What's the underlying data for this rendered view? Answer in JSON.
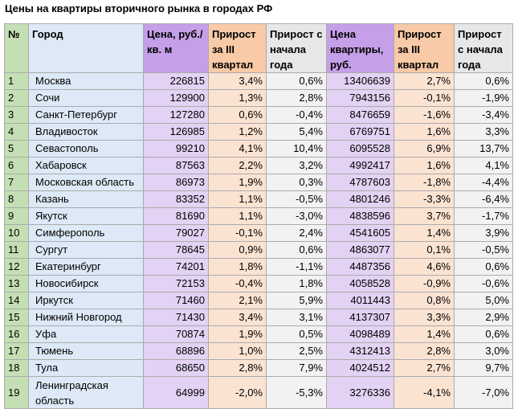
{
  "title": "Цены на квартиры вторичного рынка в городах РФ",
  "headers": {
    "num": "№",
    "city": "Город",
    "price_sqm": "Цена, руб./кв. м",
    "growth_q3_sqm": "Прирост за III квартал",
    "growth_ytd_sqm": "Прирост с начала года",
    "price_flat": "Цена квартиры, руб.",
    "growth_q3_flat": "Прирост за III квартал",
    "growth_ytd_flat": "Прирост с начала года"
  },
  "rows": [
    {
      "num": "1",
      "city": "Москва",
      "price_sqm": "226815",
      "growth_q3_sqm": "3,4%",
      "growth_ytd_sqm": "0,6%",
      "price_flat": "13406639",
      "growth_q3_flat": "2,7%",
      "growth_ytd_flat": "0,6%"
    },
    {
      "num": "2",
      "city": "Сочи",
      "price_sqm": "129900",
      "growth_q3_sqm": "1,3%",
      "growth_ytd_sqm": "2,8%",
      "price_flat": "7943156",
      "growth_q3_flat": "-0,1%",
      "growth_ytd_flat": "-1,9%"
    },
    {
      "num": "3",
      "city": "Санкт-Петербург",
      "price_sqm": "127280",
      "growth_q3_sqm": "0,6%",
      "growth_ytd_sqm": "-0,4%",
      "price_flat": "8476659",
      "growth_q3_flat": "-1,6%",
      "growth_ytd_flat": "-3,4%"
    },
    {
      "num": "4",
      "city": "Владивосток",
      "price_sqm": "126985",
      "growth_q3_sqm": "1,2%",
      "growth_ytd_sqm": "5,4%",
      "price_flat": "6769751",
      "growth_q3_flat": "1,6%",
      "growth_ytd_flat": "3,3%"
    },
    {
      "num": "5",
      "city": "Севастополь",
      "price_sqm": "99210",
      "growth_q3_sqm": "4,1%",
      "growth_ytd_sqm": "10,4%",
      "price_flat": "6095528",
      "growth_q3_flat": "6,9%",
      "growth_ytd_flat": "13,7%"
    },
    {
      "num": "6",
      "city": "Хабаровск",
      "price_sqm": "87563",
      "growth_q3_sqm": "2,2%",
      "growth_ytd_sqm": "3,2%",
      "price_flat": "4992417",
      "growth_q3_flat": "1,6%",
      "growth_ytd_flat": "4,1%"
    },
    {
      "num": "7",
      "city": "Московская область",
      "price_sqm": "86973",
      "growth_q3_sqm": "1,9%",
      "growth_ytd_sqm": "0,3%",
      "price_flat": "4787603",
      "growth_q3_flat": "-1,8%",
      "growth_ytd_flat": "-4,4%"
    },
    {
      "num": "8",
      "city": "Казань",
      "price_sqm": "83352",
      "growth_q3_sqm": "1,1%",
      "growth_ytd_sqm": "-0,5%",
      "price_flat": "4801246",
      "growth_q3_flat": "-3,3%",
      "growth_ytd_flat": "-6,4%"
    },
    {
      "num": "9",
      "city": "Якутск",
      "price_sqm": "81690",
      "growth_q3_sqm": "1,1%",
      "growth_ytd_sqm": "-3,0%",
      "price_flat": "4838596",
      "growth_q3_flat": "3,7%",
      "growth_ytd_flat": "-1,7%"
    },
    {
      "num": "10",
      "city": "Симферополь",
      "price_sqm": "79027",
      "growth_q3_sqm": "-0,1%",
      "growth_ytd_sqm": "2,4%",
      "price_flat": "4541605",
      "growth_q3_flat": "1,4%",
      "growth_ytd_flat": "3,9%"
    },
    {
      "num": "11",
      "city": "Сургут",
      "price_sqm": "78645",
      "growth_q3_sqm": "0,9%",
      "growth_ytd_sqm": "0,6%",
      "price_flat": "4863077",
      "growth_q3_flat": "0,1%",
      "growth_ytd_flat": "-0,5%"
    },
    {
      "num": "12",
      "city": "Екатеринбург",
      "price_sqm": "74201",
      "growth_q3_sqm": "1,8%",
      "growth_ytd_sqm": "-1,1%",
      "price_flat": "4487356",
      "growth_q3_flat": "4,6%",
      "growth_ytd_flat": "0,6%"
    },
    {
      "num": "13",
      "city": "Новосибирск",
      "price_sqm": "72153",
      "growth_q3_sqm": "-0,4%",
      "growth_ytd_sqm": "1,8%",
      "price_flat": "4058528",
      "growth_q3_flat": "-0,9%",
      "growth_ytd_flat": "-0,6%"
    },
    {
      "num": "14",
      "city": "Иркутск",
      "price_sqm": "71460",
      "growth_q3_sqm": "2,1%",
      "growth_ytd_sqm": "5,9%",
      "price_flat": "4011443",
      "growth_q3_flat": "0,8%",
      "growth_ytd_flat": "5,0%"
    },
    {
      "num": "15",
      "city": "Нижний Новгород",
      "price_sqm": "71430",
      "growth_q3_sqm": "3,4%",
      "growth_ytd_sqm": "3,1%",
      "price_flat": "4137307",
      "growth_q3_flat": "3,3%",
      "growth_ytd_flat": "2,9%"
    },
    {
      "num": "16",
      "city": "Уфа",
      "price_sqm": "70874",
      "growth_q3_sqm": "1,9%",
      "growth_ytd_sqm": "0,5%",
      "price_flat": "4098489",
      "growth_q3_flat": "1,4%",
      "growth_ytd_flat": "0,6%"
    },
    {
      "num": "17",
      "city": "Тюмень",
      "price_sqm": "68896",
      "growth_q3_sqm": "1,0%",
      "growth_ytd_sqm": "2,5%",
      "price_flat": "4312413",
      "growth_q3_flat": "2,8%",
      "growth_ytd_flat": "3,0%"
    },
    {
      "num": "18",
      "city": "Тула",
      "price_sqm": "68650",
      "growth_q3_sqm": "2,8%",
      "growth_ytd_sqm": "7,9%",
      "price_flat": "4024512",
      "growth_q3_flat": "2,7%",
      "growth_ytd_flat": "9,7%"
    },
    {
      "num": "19",
      "city": "Ленинградская область",
      "price_sqm": "64999",
      "growth_q3_sqm": "-2,0%",
      "growth_ytd_sqm": "-5,3%",
      "price_flat": "3276336",
      "growth_q3_flat": "-4,1%",
      "growth_ytd_flat": "-7,0%"
    }
  ]
}
